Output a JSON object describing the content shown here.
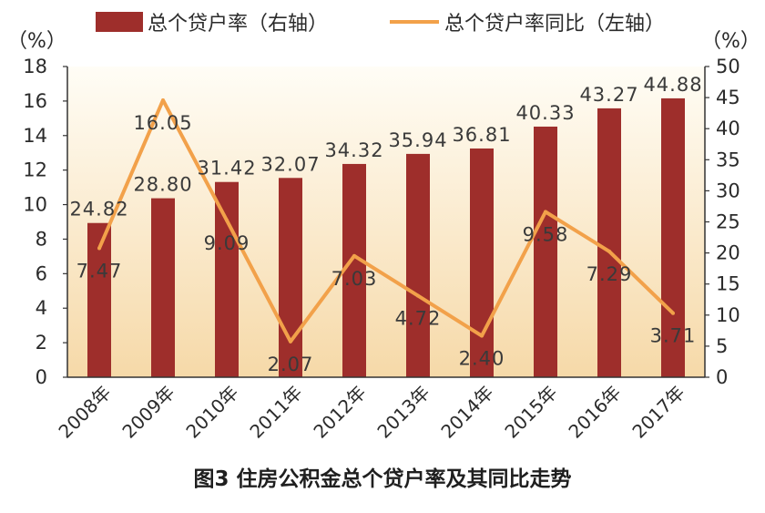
{
  "caption": "图3  住房公积金总个贷户率及其同比走势",
  "legend": {
    "bar_label": "总个贷户率（右轴）",
    "line_label": "总个贷户率同比（左轴）"
  },
  "left_axis": {
    "unit": "（%）",
    "ticks": [
      "0",
      "2",
      "4",
      "6",
      "8",
      "10",
      "12",
      "14",
      "16",
      "18"
    ]
  },
  "right_axis": {
    "unit": "（%）",
    "ticks": [
      "0",
      "5",
      "10",
      "15",
      "20",
      "25",
      "30",
      "35",
      "40",
      "45",
      "50"
    ]
  },
  "colors": {
    "bar": "#9e2e2b",
    "line": "#f2a14a",
    "gradient_top": "#fffdf6",
    "gradient_bottom": "#f6d9a8"
  },
  "chart_data": {
    "type": "bar+line",
    "categories": [
      "2008年",
      "2009年",
      "2010年",
      "2011年",
      "2012年",
      "2013年",
      "2014年",
      "2015年",
      "2016年",
      "2017年"
    ],
    "series": [
      {
        "name": "总个贷户率（右轴）",
        "type": "bar",
        "axis": "right",
        "values": [
          24.82,
          28.8,
          31.42,
          32.07,
          34.32,
          35.94,
          36.81,
          40.33,
          43.27,
          44.88
        ],
        "labels": [
          "24.82",
          "28.80",
          "31.42",
          "32.07",
          "34.32",
          "35.94",
          "36.81",
          "40.33",
          "43.27",
          "44.88"
        ]
      },
      {
        "name": "总个贷户率同比（左轴）",
        "type": "line",
        "axis": "left",
        "values": [
          7.47,
          16.05,
          9.09,
          2.07,
          7.03,
          4.72,
          2.4,
          9.58,
          7.29,
          3.71
        ],
        "labels": [
          "7.47",
          "16.05",
          "9.09",
          "2.07",
          "7.03",
          "4.72",
          "2.40",
          "9.58",
          "7.29",
          "3.71"
        ]
      }
    ],
    "left_ylim": [
      0,
      18
    ],
    "right_ylim": [
      0,
      50
    ],
    "grid": false,
    "legend_position": "top"
  }
}
